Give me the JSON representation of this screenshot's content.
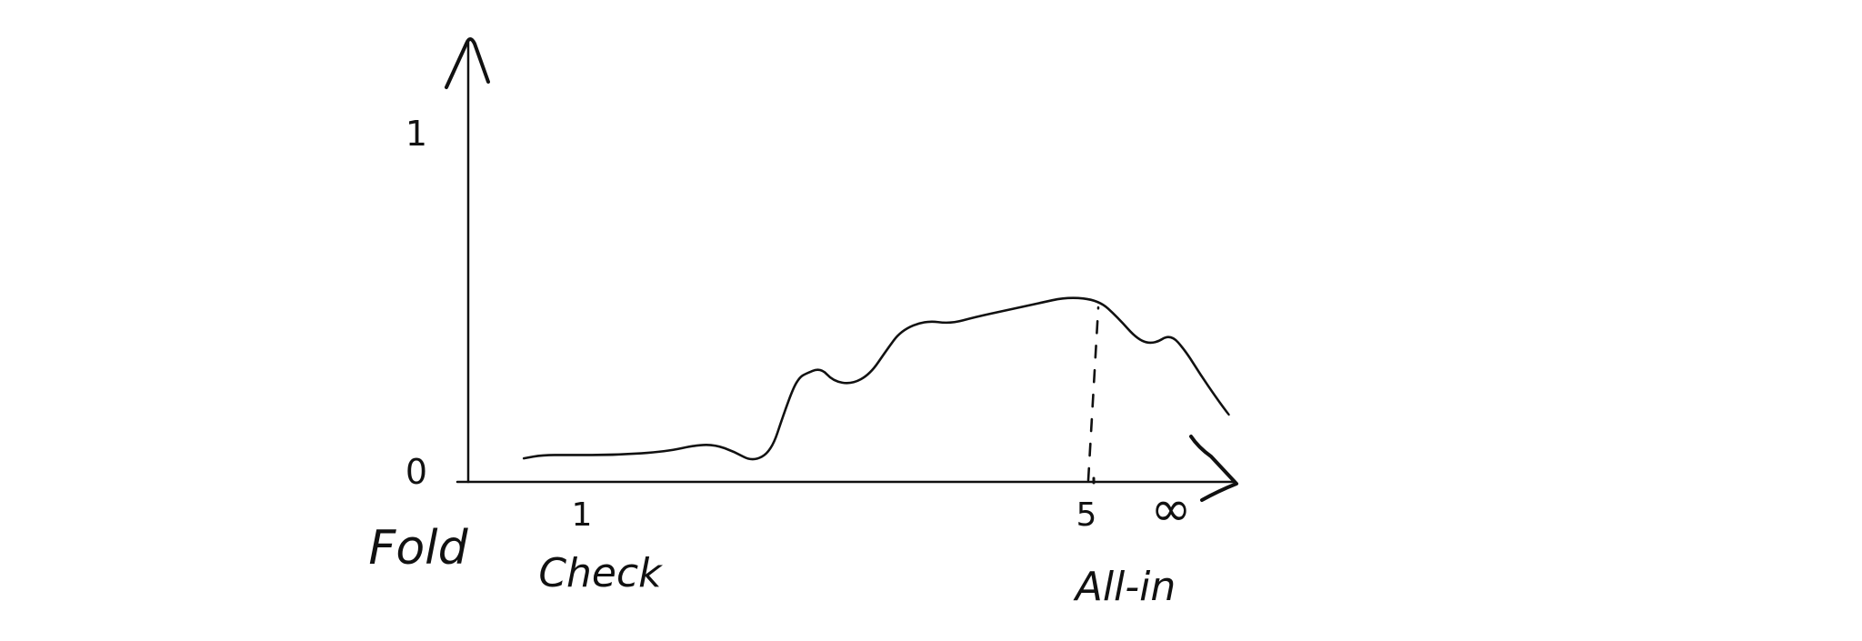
{
  "chart_data": {
    "type": "line",
    "title": "",
    "xlabel": "",
    "ylabel": "",
    "y_ticks": [
      {
        "value": 0,
        "label": "0"
      },
      {
        "value": 1,
        "label": "1"
      }
    ],
    "x_ticks": [
      {
        "value": 0,
        "label": "Fold",
        "sublabel": ""
      },
      {
        "value": 1,
        "label": "Check",
        "sublabel": "1"
      },
      {
        "value": 5,
        "label": "",
        "sublabel": "5"
      },
      {
        "value": 6.2,
        "label": "All-in",
        "sublabel": "∞"
      }
    ],
    "xlim": [
      0,
      7
    ],
    "ylim": [
      0,
      1.12
    ],
    "series": [
      {
        "name": "curve",
        "x": [
          0.45,
          0.6,
          0.8,
          1.2,
          1.6,
          1.85,
          2.0,
          2.15,
          2.3,
          2.45,
          2.55,
          2.63,
          2.68,
          2.72,
          2.85,
          2.95,
          3.1,
          3.25,
          3.38,
          3.5,
          3.7,
          3.9,
          4.1,
          4.35,
          4.6,
          4.85,
          5.1,
          5.25,
          5.42,
          5.55,
          5.68,
          5.8,
          5.92,
          6.05,
          6.15
        ],
        "y": [
          0.07,
          0.08,
          0.08,
          0.08,
          0.09,
          0.11,
          0.11,
          0.09,
          0.06,
          0.09,
          0.2,
          0.28,
          0.31,
          0.32,
          0.34,
          0.3,
          0.29,
          0.32,
          0.39,
          0.45,
          0.48,
          0.47,
          0.49,
          0.51,
          0.53,
          0.55,
          0.54,
          0.49,
          0.42,
          0.41,
          0.44,
          0.39,
          0.32,
          0.25,
          0.2
        ]
      }
    ],
    "marker": {
      "x": 5,
      "from_y": 0,
      "to_y": 0.54,
      "style": "dashed"
    },
    "y_axis_arrow": true,
    "x_axis_arrow": true
  }
}
